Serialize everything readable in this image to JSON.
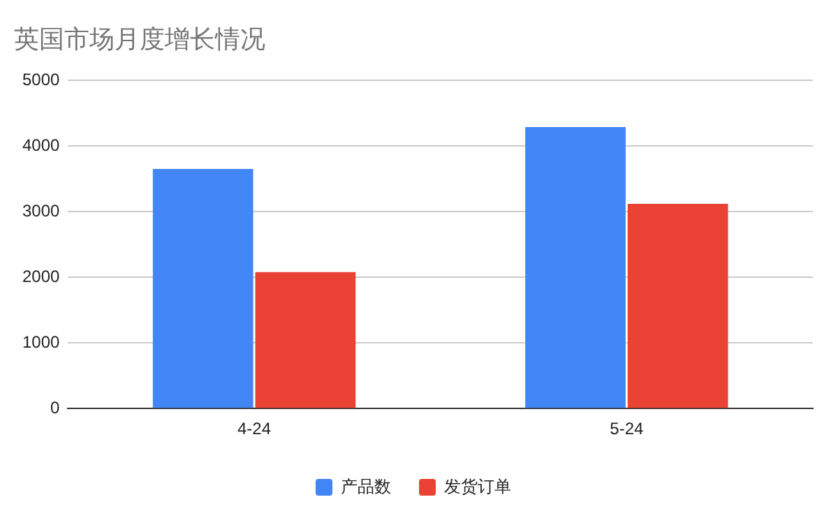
{
  "chart_data": {
    "type": "bar",
    "title": "英国市场月度增长情况",
    "categories": [
      "4-24",
      "5-24"
    ],
    "series": [
      {
        "name": "产品数",
        "color": "#4285f4",
        "values": [
          3650,
          4290
        ]
      },
      {
        "name": "发货订单",
        "color": "#ea4335",
        "values": [
          2080,
          3120
        ]
      }
    ],
    "ylim": [
      0,
      5000
    ],
    "yticks": [
      0,
      1000,
      2000,
      3000,
      4000,
      5000
    ],
    "grid": "y",
    "legend": "bottom"
  }
}
